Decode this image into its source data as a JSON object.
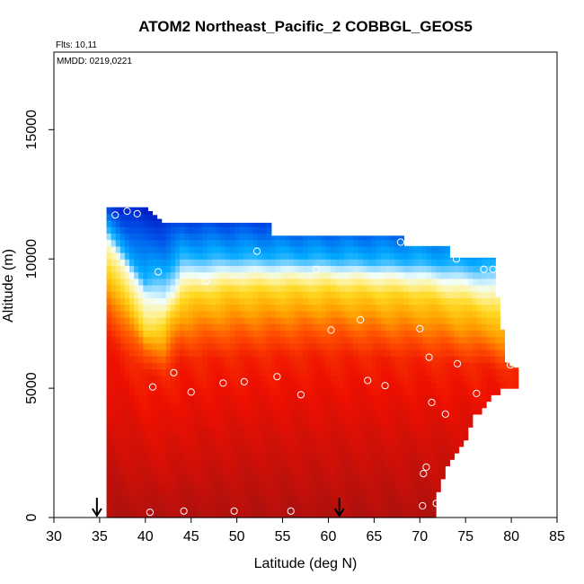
{
  "chart_data": {
    "type": "heatmap",
    "title": "ATOM2 Northeast_Pacific_2 COBBGL_GEOS5",
    "annotations": {
      "flights": "Flts: 10,11",
      "dates": "MMDD: 0219,0221"
    },
    "xlabel": "Latitude (deg N)",
    "ylabel": "Altitude (m)",
    "xlim": [
      30,
      85
    ],
    "ylim": [
      0,
      18000
    ],
    "x_ticks": [
      "30",
      "35",
      "40",
      "45",
      "50",
      "55",
      "60",
      "65",
      "70",
      "75",
      "80",
      "85"
    ],
    "y_ticks": [
      "0",
      "5000",
      "10000",
      "15000"
    ],
    "grid": false,
    "arrow_markers_lat": [
      34.7,
      61.2
    ],
    "flight_points": [
      {
        "lat": 36.7,
        "alt": 11700
      },
      {
        "lat": 38.0,
        "alt": 11850
      },
      {
        "lat": 39.1,
        "alt": 11750
      },
      {
        "lat": 41.4,
        "alt": 9500
      },
      {
        "lat": 46.6,
        "alt": 9150
      },
      {
        "lat": 52.2,
        "alt": 10300
      },
      {
        "lat": 58.7,
        "alt": 9600
      },
      {
        "lat": 67.9,
        "alt": 10650
      },
      {
        "lat": 74.0,
        "alt": 10000
      },
      {
        "lat": 77.0,
        "alt": 9600
      },
      {
        "lat": 78.0,
        "alt": 9600
      },
      {
        "lat": 60.3,
        "alt": 7250
      },
      {
        "lat": 63.5,
        "alt": 7650
      },
      {
        "lat": 70.0,
        "alt": 7300
      },
      {
        "lat": 71.0,
        "alt": 6200
      },
      {
        "lat": 74.1,
        "alt": 5950
      },
      {
        "lat": 79.9,
        "alt": 5900
      },
      {
        "lat": 43.1,
        "alt": 5600
      },
      {
        "lat": 54.4,
        "alt": 5450
      },
      {
        "lat": 40.8,
        "alt": 5050
      },
      {
        "lat": 45.0,
        "alt": 4850
      },
      {
        "lat": 48.5,
        "alt": 5200
      },
      {
        "lat": 50.8,
        "alt": 5250
      },
      {
        "lat": 57.0,
        "alt": 4750
      },
      {
        "lat": 64.3,
        "alt": 5300
      },
      {
        "lat": 66.2,
        "alt": 5100
      },
      {
        "lat": 71.3,
        "alt": 4450
      },
      {
        "lat": 76.2,
        "alt": 4800
      },
      {
        "lat": 72.8,
        "alt": 4000
      },
      {
        "lat": 70.7,
        "alt": 1950
      },
      {
        "lat": 70.4,
        "alt": 1700
      },
      {
        "lat": 40.5,
        "alt": 200
      },
      {
        "lat": 44.2,
        "alt": 250
      },
      {
        "lat": 49.7,
        "alt": 250
      },
      {
        "lat": 55.9,
        "alt": 250
      },
      {
        "lat": 70.3,
        "alt": 450
      },
      {
        "lat": 71.8,
        "alt": 550
      }
    ],
    "color_layers_note": "curtain coloured low-to-high CO: blue/purple (low, top) -> white -> yellow -> orange -> red -> dark red (high, bottom)"
  }
}
